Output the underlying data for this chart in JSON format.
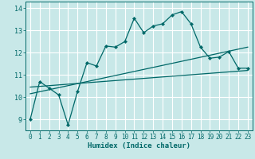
{
  "xlabel": "Humidex (Indice chaleur)",
  "bg_color": "#c8e8e8",
  "line_color": "#006868",
  "grid_color": "#b0d8d8",
  "xlim": [
    -0.5,
    23.5
  ],
  "ylim": [
    8.5,
    14.3
  ],
  "yticks": [
    9,
    10,
    11,
    12,
    13,
    14
  ],
  "xticks": [
    0,
    1,
    2,
    3,
    4,
    5,
    6,
    7,
    8,
    9,
    10,
    11,
    12,
    13,
    14,
    15,
    16,
    17,
    18,
    19,
    20,
    21,
    22,
    23
  ],
  "main_x": [
    0,
    1,
    2,
    3,
    4,
    5,
    6,
    7,
    8,
    9,
    10,
    11,
    12,
    13,
    14,
    15,
    16,
    17,
    18,
    19,
    20,
    21,
    22,
    23
  ],
  "main_y": [
    9.0,
    10.7,
    10.4,
    10.1,
    8.75,
    10.25,
    11.55,
    11.4,
    12.3,
    12.25,
    12.5,
    13.55,
    12.9,
    13.2,
    13.3,
    13.7,
    13.85,
    13.3,
    12.25,
    11.75,
    11.8,
    12.05,
    11.3,
    11.3
  ],
  "line1_x": [
    0,
    23
  ],
  "line1_y": [
    10.15,
    12.25
  ],
  "line2_x": [
    0,
    23
  ],
  "line2_y": [
    10.45,
    11.2
  ]
}
